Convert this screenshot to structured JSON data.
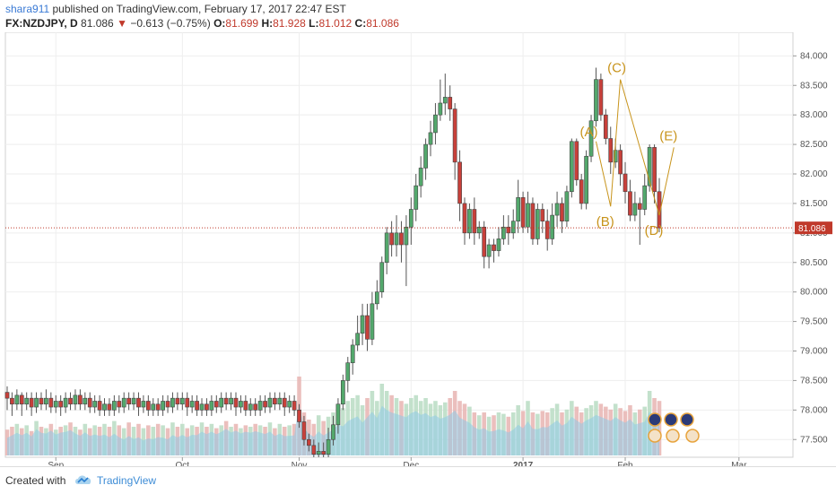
{
  "header": {
    "author": "shara911",
    "published": " published on TradingView.com, February 17, 2017 22:47 EST",
    "symbol": "FX:NZDJPY, D",
    "last": "81.086",
    "change": "−0.613 (−0.75%)",
    "open_label": "O:",
    "open": "81.699",
    "high_label": "H:",
    "high": "81.928",
    "low_label": "L:",
    "low": "81.012",
    "close_label": "C:",
    "close": "81.086"
  },
  "footer": {
    "created": "Created with",
    "brand": "TradingView"
  },
  "colors": {
    "up": "#53a86c",
    "down": "#c8403a",
    "volume": "#8fcbe6",
    "vol_up": "#b9dcc3",
    "vol_down": "#e8b4b1",
    "wave": "#c8941c",
    "price_line": "#c0392b"
  },
  "chart_data": {
    "type": "candlestick",
    "symbol": "FX:NZDJPY",
    "interval": "D",
    "ylim": [
      77.2,
      84.4
    ],
    "y_ticks": [
      "84.000",
      "83.500",
      "83.000",
      "82.500",
      "82.000",
      "81.500",
      "81.000",
      "80.500",
      "80.000",
      "79.500",
      "79.000",
      "78.500",
      "78.000",
      "77.500"
    ],
    "x_ticks": [
      "Sep",
      "Oct",
      "Nov",
      "Dec",
      "2017",
      "Feb",
      "Mar"
    ],
    "last_price": "81.086",
    "wave_labels": [
      {
        "label": "(A)",
        "price": 82.55
      },
      {
        "label": "(B)",
        "price": 81.45
      },
      {
        "label": "(C)",
        "price": 83.6
      },
      {
        "label": "(D)",
        "price": 81.3
      },
      {
        "label": "(E)",
        "price": 82.45
      }
    ],
    "candles": [
      [
        78.3,
        78.2,
        78.4,
        78.0
      ],
      [
        78.2,
        78.1,
        78.3,
        77.9
      ],
      [
        78.1,
        78.25,
        78.35,
        78.0
      ],
      [
        78.25,
        78.1,
        78.3,
        77.9
      ],
      [
        78.1,
        78.2,
        78.3,
        78.0
      ],
      [
        78.2,
        78.05,
        78.3,
        77.9
      ],
      [
        78.05,
        78.2,
        78.3,
        77.95
      ],
      [
        78.2,
        78.1,
        78.3,
        78.0
      ],
      [
        78.1,
        78.2,
        78.35,
        78.0
      ],
      [
        78.2,
        78.05,
        78.3,
        77.95
      ],
      [
        78.05,
        78.15,
        78.25,
        77.95
      ],
      [
        78.15,
        78.05,
        78.25,
        77.9
      ],
      [
        78.05,
        78.2,
        78.3,
        77.95
      ],
      [
        78.2,
        78.1,
        78.3,
        78.0
      ],
      [
        78.1,
        78.25,
        78.35,
        78.0
      ],
      [
        78.25,
        78.1,
        78.35,
        78.0
      ],
      [
        78.1,
        78.2,
        78.3,
        78.0
      ],
      [
        78.2,
        78.05,
        78.3,
        77.95
      ],
      [
        78.05,
        78.15,
        78.25,
        77.95
      ],
      [
        78.15,
        78.0,
        78.25,
        77.9
      ],
      [
        78.0,
        78.1,
        78.2,
        77.9
      ],
      [
        78.1,
        78.0,
        78.2,
        77.9
      ],
      [
        78.0,
        78.15,
        78.25,
        77.9
      ],
      [
        78.15,
        78.05,
        78.25,
        77.95
      ],
      [
        78.05,
        78.2,
        78.3,
        77.95
      ],
      [
        78.2,
        78.1,
        78.3,
        78.0
      ],
      [
        78.1,
        78.2,
        78.3,
        78.0
      ],
      [
        78.2,
        78.05,
        78.3,
        77.9
      ],
      [
        78.05,
        78.15,
        78.25,
        77.95
      ],
      [
        78.15,
        78.0,
        78.25,
        77.9
      ],
      [
        78.0,
        78.1,
        78.2,
        77.9
      ],
      [
        78.1,
        78.0,
        78.2,
        77.9
      ],
      [
        78.0,
        78.15,
        78.25,
        77.9
      ],
      [
        78.15,
        78.05,
        78.25,
        77.95
      ],
      [
        78.05,
        78.2,
        78.3,
        77.95
      ],
      [
        78.2,
        78.1,
        78.3,
        78.0
      ],
      [
        78.1,
        78.2,
        78.3,
        78.0
      ],
      [
        78.2,
        78.05,
        78.3,
        77.9
      ],
      [
        78.05,
        78.15,
        78.25,
        77.95
      ],
      [
        78.15,
        78.0,
        78.25,
        77.9
      ],
      [
        78.0,
        78.1,
        78.2,
        77.9
      ],
      [
        78.1,
        78.0,
        78.2,
        77.9
      ],
      [
        78.0,
        78.15,
        78.25,
        77.9
      ],
      [
        78.15,
        78.05,
        78.25,
        77.95
      ],
      [
        78.05,
        78.2,
        78.3,
        77.95
      ],
      [
        78.2,
        78.1,
        78.3,
        78.0
      ],
      [
        78.1,
        78.2,
        78.3,
        78.0
      ],
      [
        78.2,
        78.05,
        78.3,
        77.9
      ],
      [
        78.05,
        78.15,
        78.25,
        77.95
      ],
      [
        78.15,
        78.0,
        78.25,
        77.9
      ],
      [
        78.0,
        78.1,
        78.2,
        77.9
      ],
      [
        78.1,
        78.0,
        78.2,
        77.9
      ],
      [
        78.0,
        78.15,
        78.25,
        77.9
      ],
      [
        78.15,
        78.05,
        78.25,
        77.95
      ],
      [
        78.05,
        78.2,
        78.3,
        77.95
      ],
      [
        78.2,
        78.1,
        78.3,
        78.0
      ],
      [
        78.1,
        78.2,
        78.3,
        78.0
      ],
      [
        78.2,
        78.05,
        78.3,
        77.9
      ],
      [
        78.05,
        78.15,
        78.25,
        77.95
      ],
      [
        78.15,
        78.0,
        78.25,
        77.9
      ],
      [
        78.0,
        77.8,
        78.1,
        77.7
      ],
      [
        77.8,
        77.5,
        77.9,
        77.4
      ],
      [
        77.5,
        77.4,
        77.6,
        77.3
      ],
      [
        77.4,
        77.25,
        77.5,
        77.2
      ],
      [
        77.25,
        77.3,
        77.45,
        77.2
      ],
      [
        77.3,
        77.25,
        77.45,
        77.2
      ],
      [
        77.25,
        77.5,
        77.7,
        77.2
      ],
      [
        77.5,
        77.75,
        77.9,
        77.4
      ],
      [
        77.75,
        78.1,
        78.2,
        77.6
      ],
      [
        78.1,
        78.5,
        78.6,
        78.0
      ],
      [
        78.5,
        78.8,
        78.9,
        78.3
      ],
      [
        78.8,
        79.1,
        79.2,
        78.6
      ],
      [
        79.1,
        79.3,
        79.6,
        79.0
      ],
      [
        79.3,
        79.6,
        79.8,
        79.1
      ],
      [
        79.6,
        79.2,
        79.8,
        79.0
      ],
      [
        79.2,
        79.8,
        80.0,
        79.1
      ],
      [
        79.8,
        80.0,
        80.2,
        79.7
      ],
      [
        80.0,
        80.5,
        80.6,
        79.9
      ],
      [
        80.5,
        81.0,
        81.1,
        80.3
      ],
      [
        81.0,
        80.8,
        81.2,
        80.6
      ],
      [
        80.8,
        81.0,
        81.3,
        80.6
      ],
      [
        81.0,
        80.8,
        81.2,
        80.5
      ],
      [
        80.8,
        81.1,
        81.3,
        80.1
      ],
      [
        81.1,
        81.4,
        81.6,
        80.8
      ],
      [
        81.4,
        81.8,
        82.0,
        81.2
      ],
      [
        81.8,
        82.1,
        82.3,
        81.6
      ],
      [
        82.1,
        82.5,
        82.6,
        81.9
      ],
      [
        82.5,
        82.7,
        82.9,
        82.3
      ],
      [
        82.7,
        83.0,
        83.2,
        82.5
      ],
      [
        83.0,
        83.2,
        83.6,
        82.9
      ],
      [
        83.2,
        83.3,
        83.7,
        83.0
      ],
      [
        83.3,
        83.1,
        83.5,
        82.9
      ],
      [
        83.1,
        82.2,
        83.2,
        81.9
      ],
      [
        82.2,
        81.5,
        82.4,
        81.2
      ],
      [
        81.5,
        81.0,
        81.6,
        80.8
      ],
      [
        81.0,
        81.4,
        81.5,
        80.9
      ],
      [
        81.4,
        81.0,
        81.6,
        80.8
      ],
      [
        81.0,
        81.1,
        81.2,
        80.9
      ],
      [
        81.1,
        80.6,
        81.2,
        80.4
      ],
      [
        80.6,
        80.8,
        80.9,
        80.4
      ],
      [
        80.8,
        80.7,
        80.9,
        80.5
      ],
      [
        80.7,
        80.9,
        81.1,
        80.6
      ],
      [
        80.9,
        81.1,
        81.3,
        80.8
      ],
      [
        81.1,
        81.0,
        81.3,
        80.8
      ],
      [
        81.0,
        81.2,
        81.4,
        80.9
      ],
      [
        81.2,
        81.6,
        81.9,
        81.0
      ],
      [
        81.6,
        81.1,
        81.7,
        81.0
      ],
      [
        81.1,
        81.5,
        81.7,
        81.0
      ],
      [
        81.5,
        80.9,
        81.6,
        80.8
      ],
      [
        80.9,
        81.4,
        81.5,
        80.8
      ],
      [
        81.4,
        81.2,
        81.5,
        81.0
      ],
      [
        81.2,
        80.9,
        81.4,
        80.7
      ],
      [
        80.9,
        81.3,
        81.5,
        80.8
      ],
      [
        81.3,
        81.5,
        81.7,
        81.1
      ],
      [
        81.5,
        81.2,
        81.6,
        81.0
      ],
      [
        81.2,
        81.7,
        81.8,
        81.1
      ],
      [
        81.7,
        82.55,
        82.6,
        81.6
      ],
      [
        82.55,
        81.9,
        82.6,
        81.8
      ],
      [
        81.9,
        81.5,
        82.0,
        81.4
      ],
      [
        81.5,
        82.3,
        82.4,
        81.4
      ],
      [
        82.3,
        82.9,
        83.0,
        82.2
      ],
      [
        82.9,
        83.6,
        83.8,
        82.8
      ],
      [
        83.6,
        83.0,
        83.7,
        82.9
      ],
      [
        83.0,
        82.6,
        83.1,
        82.5
      ],
      [
        82.6,
        82.2,
        82.8,
        82.0
      ],
      [
        82.2,
        82.4,
        82.6,
        82.1
      ],
      [
        82.4,
        82.0,
        82.5,
        81.8
      ],
      [
        82.0,
        81.7,
        82.2,
        81.5
      ],
      [
        81.7,
        81.3,
        81.9,
        81.2
      ],
      [
        81.3,
        81.5,
        81.7,
        81.2
      ],
      [
        81.5,
        81.4,
        81.6,
        80.8
      ],
      [
        81.4,
        81.8,
        82.0,
        81.3
      ],
      [
        81.8,
        82.45,
        82.5,
        81.7
      ],
      [
        82.45,
        81.7,
        82.5,
        81.5
      ],
      [
        81.7,
        81.086,
        81.93,
        81.012
      ]
    ],
    "volumes": [
      0.18,
      0.2,
      0.22,
      0.19,
      0.21,
      0.17,
      0.24,
      0.2,
      0.19,
      0.22,
      0.18,
      0.2,
      0.21,
      0.23,
      0.2,
      0.18,
      0.22,
      0.19,
      0.21,
      0.2,
      0.22,
      0.2,
      0.24,
      0.21,
      0.19,
      0.23,
      0.2,
      0.22,
      0.19,
      0.21,
      0.2,
      0.22,
      0.21,
      0.19,
      0.23,
      0.2,
      0.22,
      0.19,
      0.21,
      0.2,
      0.23,
      0.2,
      0.22,
      0.19,
      0.21,
      0.24,
      0.2,
      0.22,
      0.19,
      0.21,
      0.2,
      0.22,
      0.21,
      0.2,
      0.23,
      0.19,
      0.22,
      0.2,
      0.21,
      0.22,
      0.55,
      0.3,
      0.25,
      0.22,
      0.28,
      0.24,
      0.27,
      0.3,
      0.35,
      0.33,
      0.38,
      0.4,
      0.42,
      0.35,
      0.4,
      0.45,
      0.38,
      0.5,
      0.45,
      0.42,
      0.4,
      0.38,
      0.36,
      0.4,
      0.42,
      0.38,
      0.4,
      0.36,
      0.38,
      0.35,
      0.37,
      0.4,
      0.45,
      0.38,
      0.36,
      0.34,
      0.3,
      0.28,
      0.3,
      0.27,
      0.28,
      0.3,
      0.29,
      0.27,
      0.3,
      0.35,
      0.31,
      0.38,
      0.3,
      0.29,
      0.31,
      0.3,
      0.33,
      0.36,
      0.3,
      0.32,
      0.38,
      0.34,
      0.3,
      0.33,
      0.35,
      0.38,
      0.36,
      0.34,
      0.32,
      0.36,
      0.33,
      0.31,
      0.35,
      0.3,
      0.32,
      0.34,
      0.45,
      0.4,
      0.38
    ]
  }
}
